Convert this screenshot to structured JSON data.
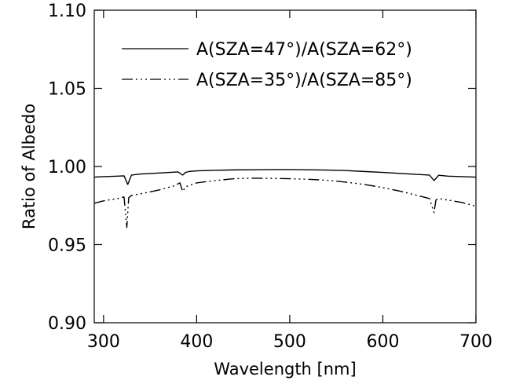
{
  "chart_data": {
    "type": "line",
    "title": "",
    "xlabel": "Wavelength [nm]",
    "ylabel": "Ratio of Albedo",
    "xlim": [
      290,
      700
    ],
    "ylim": [
      0.9,
      1.1
    ],
    "xticks": [
      300,
      400,
      500,
      600,
      700
    ],
    "yticks": [
      0.9,
      0.95,
      1.0,
      1.05,
      1.1
    ],
    "xtick_labels": [
      "300",
      "400",
      "500",
      "600",
      "700"
    ],
    "ytick_labels": [
      "0.90",
      "0.95",
      "1.00",
      "1.05",
      "1.10"
    ],
    "grid": false,
    "legend": "top-center",
    "series": [
      {
        "name": "A(SZA=47°)/A(SZA=62°)",
        "line_style": "solid",
        "color": "#000000",
        "x": [
          290,
          300,
          315,
          322,
          326,
          330,
          340,
          360,
          380,
          385,
          388,
          392,
          400,
          420,
          440,
          460,
          480,
          500,
          520,
          540,
          560,
          580,
          600,
          620,
          640,
          650,
          655,
          660,
          670,
          685,
          700
        ],
        "y": [
          0.9932,
          0.9935,
          0.9938,
          0.994,
          0.9885,
          0.9945,
          0.9952,
          0.9958,
          0.9965,
          0.9945,
          0.9962,
          0.9968,
          0.9972,
          0.9976,
          0.9978,
          0.9979,
          0.998,
          0.998,
          0.9979,
          0.9977,
          0.9974,
          0.9968,
          0.9962,
          0.9955,
          0.9948,
          0.9945,
          0.991,
          0.9944,
          0.9938,
          0.9935,
          0.9932
        ]
      },
      {
        "name": "A(SZA=35°)/A(SZA=85°)",
        "line_style": "dash-dot-dot-dot",
        "color": "#000000",
        "x": [
          290,
          300,
          315,
          322,
          325,
          327,
          330,
          340,
          360,
          375,
          382,
          385,
          388,
          400,
          420,
          440,
          460,
          480,
          500,
          520,
          540,
          560,
          580,
          600,
          620,
          640,
          650,
          655,
          657,
          660,
          670,
          685,
          700
        ],
        "y": [
          0.9765,
          0.978,
          0.9795,
          0.9805,
          0.961,
          0.98,
          0.9815,
          0.9825,
          0.985,
          0.9875,
          0.9895,
          0.984,
          0.987,
          0.9895,
          0.991,
          0.9922,
          0.9925,
          0.9924,
          0.9922,
          0.9918,
          0.9912,
          0.99,
          0.9885,
          0.9865,
          0.984,
          0.981,
          0.9795,
          0.9705,
          0.9785,
          0.9795,
          0.9785,
          0.977,
          0.9745
        ]
      }
    ]
  }
}
